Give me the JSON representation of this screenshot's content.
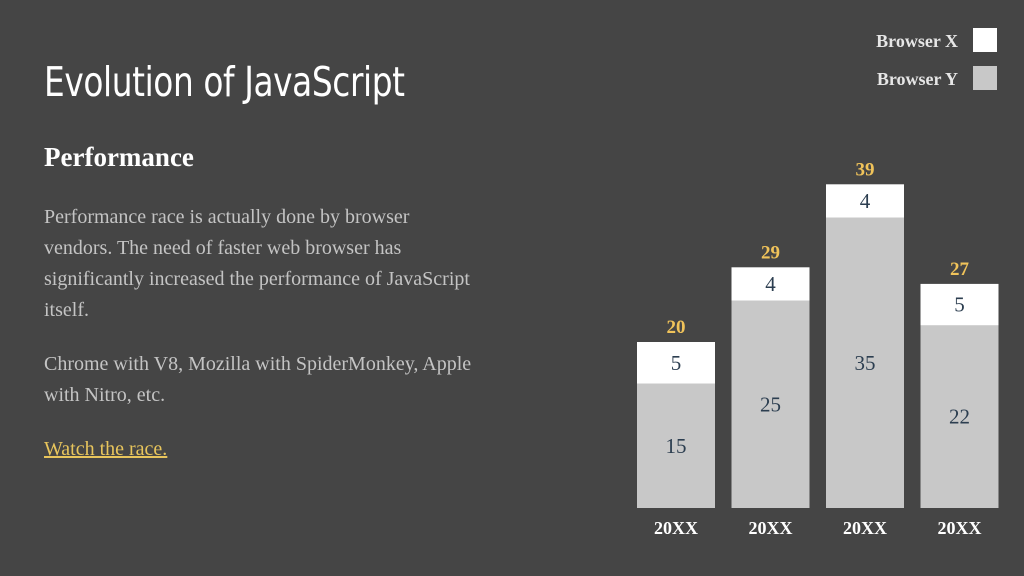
{
  "slide": {
    "title": "Evolution of JavaScript",
    "subtitle": "Performance",
    "paragraph1": "Performance race is actually done by browser vendors. The need of faster web browser has significantly increased the performance of JavaScript itself.",
    "paragraph2": "Chrome with V8, Mozilla with SpiderMonkey, Apple with Nitro, etc.",
    "link_text": "Watch the race."
  },
  "colors": {
    "background": "#454545",
    "browser_x": "#ffffff",
    "browser_y": "#c8c8c8",
    "value_label": "#2c3e50",
    "total_label": "#f0c35a",
    "axis_label": "#ffffff",
    "link": "#e8c55c"
  },
  "chart_data": {
    "type": "bar",
    "stacked": true,
    "categories": [
      "20XX",
      "20XX",
      "20XX",
      "20XX"
    ],
    "series": [
      {
        "name": "Browser Y",
        "values": [
          15,
          25,
          35,
          22
        ]
      },
      {
        "name": "Browser X",
        "values": [
          5,
          4,
          4,
          5
        ]
      }
    ],
    "totals": [
      20,
      29,
      39,
      27
    ],
    "legend_order": [
      "Browser X",
      "Browser Y"
    ],
    "legend_position": "top-right",
    "ylim": [
      0,
      40
    ],
    "grid": false,
    "title": "",
    "xlabel": "",
    "ylabel": ""
  }
}
